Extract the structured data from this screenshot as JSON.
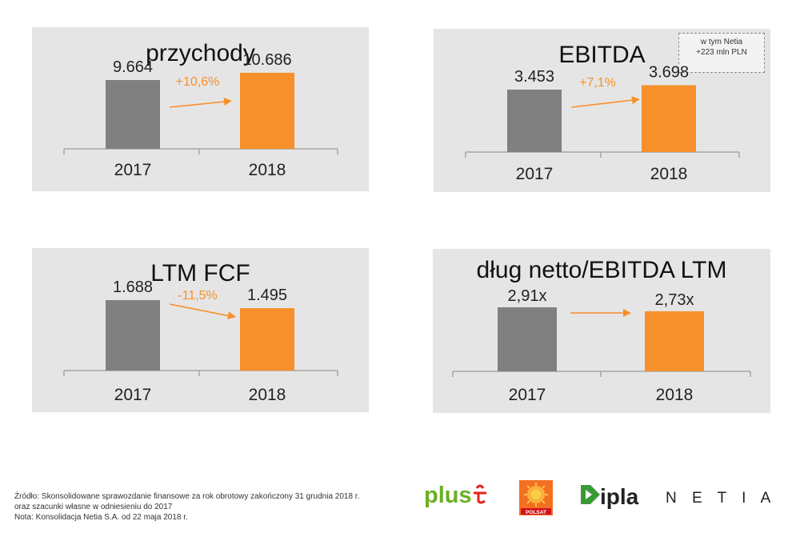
{
  "chart_data": [
    {
      "type": "bar",
      "title": "przychody",
      "categories": [
        "2017",
        "2018"
      ],
      "values": [
        9664,
        10686
      ],
      "value_labels": [
        "9.664",
        "10.686"
      ],
      "change_label": "+10,6%",
      "ylim": [
        0,
        12000
      ]
    },
    {
      "type": "bar",
      "title": "EBITDA",
      "categories": [
        "2017",
        "2018"
      ],
      "values": [
        3453,
        3698
      ],
      "value_labels": [
        "3.453",
        "3.698"
      ],
      "change_label": "+7,1%",
      "note": [
        "w tym Netia",
        "+223 mln PLN"
      ],
      "ylim": [
        0,
        4400
      ]
    },
    {
      "type": "bar",
      "title": "LTM FCF",
      "categories": [
        "2017",
        "2018"
      ],
      "values": [
        1688,
        1495
      ],
      "value_labels": [
        "1.688",
        "1.495"
      ],
      "change_label": "-11,5%",
      "ylim": [
        0,
        2000
      ]
    },
    {
      "type": "bar",
      "title": "dług netto/EBITDA LTM",
      "categories": [
        "2017",
        "2018"
      ],
      "values": [
        2.91,
        2.73
      ],
      "value_labels": [
        "2,91x",
        "2,73x"
      ],
      "change_label": "",
      "ylim": [
        0,
        4.3
      ]
    }
  ],
  "colors": {
    "bar_2017": "#808080",
    "bar_2018": "#f7902a",
    "change_text": "#f7902a",
    "panel_bg": "#e5e5e5"
  },
  "footer": {
    "line1": "Źródło: Skonsolidowane sprawozdanie finansowe za rok obrotowy zakończony 31 grudnia 2018  r.",
    "line2": "oraz szacunki własne w odniesieniu do 2017",
    "line3": "Nota: Konsolidacja Netia S.A. od 22 maja 2018 r."
  },
  "logos": {
    "plus": "plus",
    "polsat": "POLSAT",
    "ipla": "ipla",
    "netia": "N E T I A"
  }
}
